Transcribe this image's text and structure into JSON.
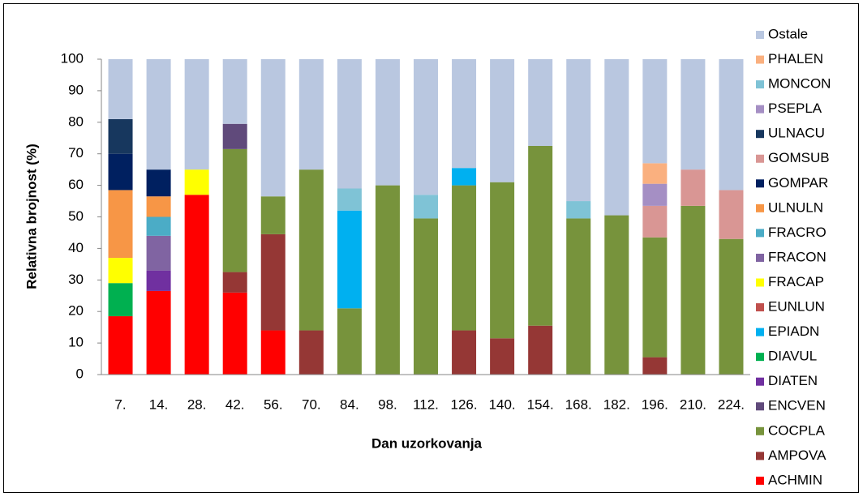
{
  "chart_data": {
    "type": "stacked-bar",
    "x_label": "Dan uzorkovanja",
    "y_label": "Relativna brojnost (%)",
    "categories": [
      "7.",
      "14.",
      "28.",
      "42.",
      "56.",
      "70.",
      "84.",
      "98.",
      "112.",
      "126.",
      "140.",
      "154.",
      "168.",
      "182.",
      "196.",
      "210.",
      "224."
    ],
    "ylim": [
      0,
      100
    ],
    "yticks": [
      0,
      10,
      20,
      30,
      40,
      50,
      60,
      70,
      80,
      90,
      100
    ],
    "grid": false,
    "legend": "right",
    "series": [
      {
        "name": "ACHMIN",
        "color": "#ff0000",
        "values": [
          18.5,
          26.5,
          57,
          26,
          14,
          null,
          null,
          null,
          null,
          null,
          null,
          null,
          null,
          null,
          null,
          null,
          null
        ]
      },
      {
        "name": "AMPOVA",
        "color": "#953735",
        "values": [
          null,
          null,
          null,
          6.5,
          30.5,
          14,
          null,
          null,
          null,
          14,
          11.5,
          15.5,
          null,
          null,
          5.5,
          null,
          null
        ]
      },
      {
        "name": "COCPLA",
        "color": "#77933c",
        "values": [
          null,
          null,
          null,
          39,
          12,
          51,
          21,
          60,
          49.5,
          46,
          49.5,
          57,
          49.5,
          50.5,
          38,
          53.5,
          43
        ]
      },
      {
        "name": "ENCVEN",
        "color": "#604a7b",
        "values": [
          null,
          null,
          null,
          8,
          null,
          null,
          null,
          null,
          null,
          null,
          null,
          null,
          null,
          null,
          null,
          null,
          null
        ]
      },
      {
        "name": "DIATEN",
        "color": "#7030a0",
        "values": [
          null,
          6.5,
          null,
          null,
          null,
          null,
          null,
          null,
          null,
          null,
          null,
          null,
          null,
          null,
          null,
          null,
          null
        ]
      },
      {
        "name": "DIAVUL",
        "color": "#00b050",
        "values": [
          10.5,
          null,
          null,
          null,
          null,
          null,
          null,
          null,
          null,
          null,
          null,
          null,
          null,
          null,
          null,
          null,
          null
        ]
      },
      {
        "name": "EPIADN",
        "color": "#00b0f0",
        "values": [
          null,
          null,
          null,
          null,
          null,
          null,
          31,
          null,
          null,
          5.5,
          null,
          null,
          null,
          null,
          null,
          null,
          null
        ]
      },
      {
        "name": "EUNLUN",
        "color": "#c0504d",
        "values": [
          null,
          null,
          null,
          null,
          null,
          null,
          null,
          null,
          null,
          null,
          null,
          null,
          null,
          null,
          null,
          null,
          null
        ]
      },
      {
        "name": "FRACAP",
        "color": "#ffff00",
        "values": [
          8,
          null,
          8,
          null,
          null,
          null,
          null,
          null,
          null,
          null,
          null,
          null,
          null,
          null,
          null,
          null,
          null
        ]
      },
      {
        "name": "FRACON",
        "color": "#8064a2",
        "values": [
          null,
          11,
          null,
          null,
          null,
          null,
          null,
          null,
          null,
          null,
          null,
          null,
          null,
          null,
          null,
          null,
          null
        ]
      },
      {
        "name": "FRACRO",
        "color": "#4bacc6",
        "values": [
          null,
          6,
          null,
          null,
          null,
          null,
          null,
          null,
          null,
          null,
          null,
          null,
          null,
          null,
          null,
          null,
          null
        ]
      },
      {
        "name": "ULNULN",
        "color": "#f79646",
        "values": [
          21.5,
          6.5,
          null,
          null,
          null,
          null,
          null,
          null,
          null,
          null,
          null,
          null,
          null,
          null,
          null,
          null,
          null
        ]
      },
      {
        "name": "GOMPAR",
        "color": "#002060",
        "values": [
          11.5,
          8.5,
          null,
          null,
          null,
          null,
          null,
          null,
          null,
          null,
          null,
          null,
          null,
          null,
          null,
          null,
          null
        ]
      },
      {
        "name": "GOMSUB",
        "color": "#d99694",
        "values": [
          null,
          null,
          null,
          null,
          null,
          null,
          null,
          null,
          null,
          null,
          null,
          null,
          null,
          null,
          10,
          11.5,
          15.5
        ]
      },
      {
        "name": "ULNACU",
        "color": "#17375e",
        "values": [
          11,
          null,
          null,
          null,
          null,
          null,
          null,
          null,
          null,
          null,
          null,
          null,
          null,
          null,
          null,
          null,
          null
        ]
      },
      {
        "name": "PSEPLA",
        "color": "#a58fc4",
        "values": [
          null,
          null,
          null,
          null,
          null,
          null,
          null,
          null,
          null,
          null,
          null,
          null,
          null,
          null,
          7,
          null,
          null
        ]
      },
      {
        "name": "MONCON",
        "color": "#7fc3d6",
        "values": [
          null,
          null,
          null,
          null,
          null,
          null,
          7,
          null,
          7.5,
          null,
          null,
          null,
          5.5,
          null,
          null,
          null,
          null
        ]
      },
      {
        "name": "PHALEN",
        "color": "#fab07f",
        "values": [
          null,
          null,
          null,
          null,
          null,
          null,
          null,
          null,
          null,
          null,
          null,
          null,
          null,
          null,
          6.5,
          null,
          null
        ]
      },
      {
        "name": "Ostale",
        "color": "#b9c7e0",
        "values": [
          19,
          35,
          35,
          20.5,
          43.5,
          35,
          41,
          40,
          43,
          34.5,
          39,
          27.5,
          45,
          49.5,
          33,
          35,
          41.5
        ]
      }
    ]
  }
}
